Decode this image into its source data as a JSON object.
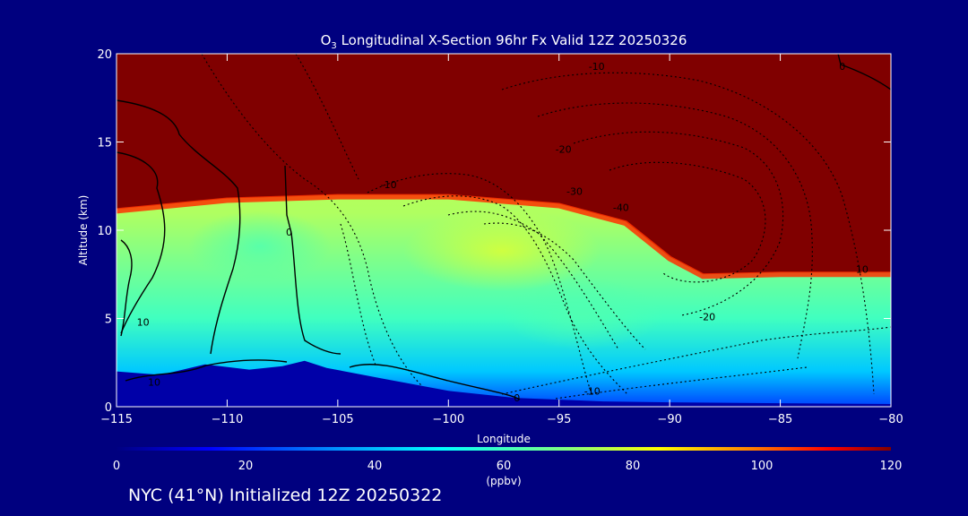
{
  "chart_data": {
    "type": "heatmap",
    "title_main": "O",
    "title_sub": "3",
    "title_rest": " Longitudinal X-Section 96hr  Fx Valid 12Z 20250326",
    "xlabel": "Longitude",
    "ylabel": "Altitude (km)",
    "xlim": [
      -115,
      -80
    ],
    "ylim": [
      0,
      20
    ],
    "x_ticks": [
      -115,
      -110,
      -105,
      -100,
      -95,
      -90,
      -85,
      -80
    ],
    "x_tick_labels": [
      "−115",
      "−110",
      "−105",
      "−100",
      "−95",
      "−90",
      "−85",
      "−80"
    ],
    "y_ticks": [
      0,
      5,
      10,
      15,
      20
    ],
    "y_tick_labels": [
      "0",
      "5",
      "10",
      "15",
      "20"
    ],
    "colorbar": {
      "min": 0,
      "max": 120,
      "ticks": [
        0,
        20,
        40,
        60,
        80,
        100,
        120
      ],
      "tick_labels": [
        "0",
        "20",
        "40",
        "60",
        "80",
        "100",
        "120"
      ],
      "units": "(ppbv)"
    },
    "fill_regions": [
      {
        "name": "stratosphere",
        "value": 120,
        "top_boundary": [
          [
            -115,
            11.2
          ],
          [
            -110,
            11.8
          ],
          [
            -105,
            12
          ],
          [
            -100,
            12
          ],
          [
            -95,
            11.5
          ],
          [
            -92,
            10.5
          ],
          [
            -90,
            8.5
          ],
          [
            -88.5,
            7.5
          ],
          [
            -85,
            7.6
          ],
          [
            -80,
            7.6
          ]
        ]
      },
      {
        "name": "mid-troposphere",
        "value": 70
      },
      {
        "name": "lower-troposphere",
        "value": 45
      },
      {
        "name": "terrain",
        "value": 0,
        "surface": [
          [
            -115,
            2.0
          ],
          [
            -113,
            1.8
          ],
          [
            -111,
            2.4
          ],
          [
            -109,
            2.1
          ],
          [
            -107.5,
            2.3
          ],
          [
            -106.5,
            2.6
          ],
          [
            -105.5,
            2.2
          ],
          [
            -103,
            1.6
          ],
          [
            -100,
            0.9
          ],
          [
            -97,
            0.5
          ],
          [
            -93,
            0.3
          ],
          [
            -90,
            0.25
          ],
          [
            -85,
            0.2
          ],
          [
            -80,
            0.15
          ]
        ]
      }
    ],
    "contour_labels": [
      {
        "text": "-10",
        "x": -93.3,
        "y": 19.3
      },
      {
        "text": "-20",
        "x": -94.8,
        "y": 14.6
      },
      {
        "text": "-30",
        "x": -94.3,
        "y": 12.2
      },
      {
        "text": "-40",
        "x": -92.2,
        "y": 11.3
      },
      {
        "text": "-10",
        "x": -102.7,
        "y": 12.6
      },
      {
        "text": "-20",
        "x": -88.3,
        "y": 5.1
      },
      {
        "text": "-10",
        "x": -93.5,
        "y": 0.9
      },
      {
        "text": "10",
        "x": -81.3,
        "y": 7.8
      },
      {
        "text": "10",
        "x": -113.8,
        "y": 4.8
      },
      {
        "text": "10",
        "x": -113.3,
        "y": 1.4
      },
      {
        "text": "0",
        "x": -107.2,
        "y": 9.9
      },
      {
        "text": "0",
        "x": -96.9,
        "y": 0.5
      },
      {
        "text": "0",
        "x": -82.2,
        "y": 19.3
      }
    ]
  },
  "footer": "NYC (41°N) Initialized 12Z 20250322",
  "colors": {
    "background": "#00007f",
    "stratosphere": "#800000",
    "axis": "#ffffff"
  }
}
